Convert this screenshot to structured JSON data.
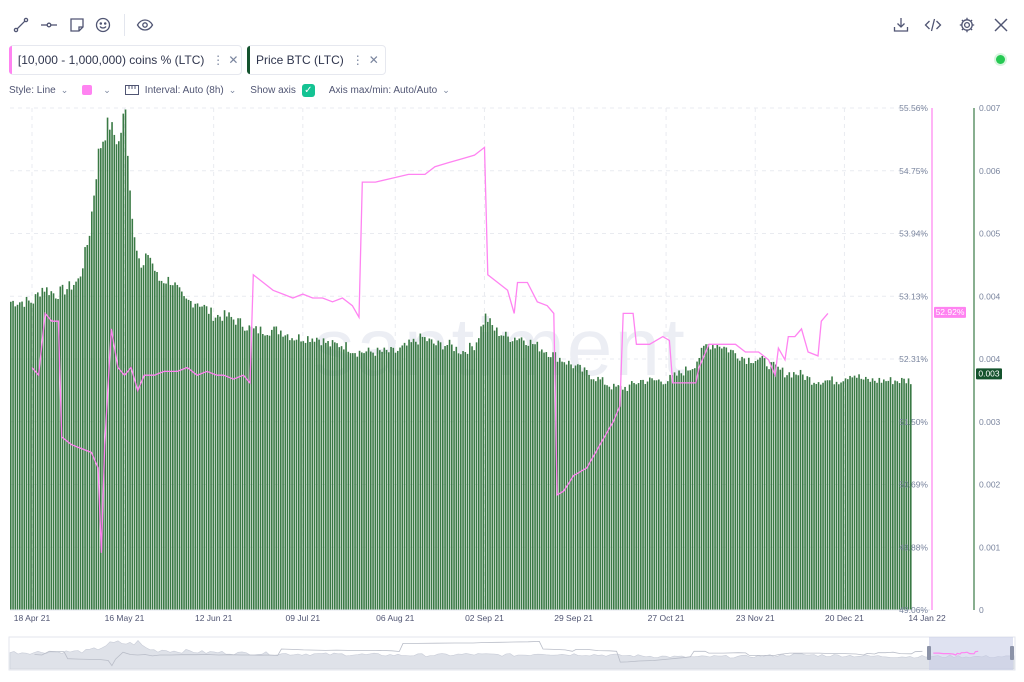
{
  "toolbar": {
    "left_icons": [
      "draw-line-icon",
      "horizontal-ray-icon",
      "note-icon",
      "emoji-icon",
      "eye-icon"
    ],
    "right_icons": [
      "download-icon",
      "embed-code-icon",
      "gear-icon",
      "close-icon"
    ]
  },
  "metrics": [
    {
      "label": "[10,000 - 1,000,000) coins % (LTC)",
      "color": "#ff83f1"
    },
    {
      "label": "Price BTC (LTC)",
      "color": "#14532d"
    }
  ],
  "settings": {
    "style": "Style: Line",
    "interval": "Interval: Auto (8h)",
    "show_axis": "Show axis",
    "axis_minmax": "Axis max/min: Auto/Auto"
  },
  "chart_data": {
    "type": "bar",
    "watermark": "santiment",
    "x_ticks": [
      "18 Apr 21",
      "16 May 21",
      "12 Jun 21",
      "09 Jul 21",
      "06 Aug 21",
      "02 Sep 21",
      "29 Sep 21",
      "27 Oct 21",
      "23 Nov 21",
      "20 Dec 21",
      "14 Jan 22"
    ],
    "left_axis": {
      "ticks": [
        "55.56%",
        "54.75%",
        "53.94%",
        "53.13%",
        "52.31%",
        "51.50%",
        "50.69%",
        "49.88%",
        "49.06%"
      ],
      "ylim": [
        49.06,
        55.56
      ],
      "current_value_label": "52.92%",
      "current_value": 52.92,
      "color": "#ff83f1"
    },
    "right_axis": {
      "ticks": [
        "0.007",
        "0.006",
        "0.005",
        "0.004",
        "0.004",
        "0.003",
        "0.002",
        "0.001",
        "0"
      ],
      "ylim": [
        0,
        0.007
      ],
      "current_value_label": "0.003",
      "current_value": 0.0033,
      "color": "#14532d"
    },
    "series": [
      {
        "name": "[10,000 - 1,000,000) coins % (LTC)",
        "type": "line",
        "color": "#ff83f1",
        "points": [
          [
            "18 Apr 21",
            52.2
          ],
          [
            "20 Apr 21",
            52.1
          ],
          [
            "22 Apr 21",
            52.9
          ],
          [
            "24 Apr 21",
            52.8
          ],
          [
            "26 Apr 21",
            52.8
          ],
          [
            "27 Apr 21",
            51.3
          ],
          [
            "30 Apr 21",
            51.2
          ],
          [
            "03 May 21",
            51.15
          ],
          [
            "06 May 21",
            51.1
          ],
          [
            "08 May 21",
            50.9
          ],
          [
            "09 May 21",
            49.8
          ],
          [
            "10 May 21",
            51.2
          ],
          [
            "12 May 21",
            52.7
          ],
          [
            "14 May 21",
            52.2
          ],
          [
            "16 May 21",
            52.1
          ],
          [
            "18 May 21",
            52.2
          ],
          [
            "20 May 21",
            51.9
          ],
          [
            "22 May 21",
            52.1
          ],
          [
            "25 May 21",
            52.1
          ],
          [
            "28 May 21",
            52.15
          ],
          [
            "01 Jun 21",
            52.15
          ],
          [
            "04 Jun 21",
            52.2
          ],
          [
            "07 Jun 21",
            52.1
          ],
          [
            "10 Jun 21",
            52.15
          ],
          [
            "13 Jun 21",
            52.1
          ],
          [
            "15 Jun 21",
            52.1
          ],
          [
            "18 Jun 21",
            52.05
          ],
          [
            "21 Jun 21",
            52.1
          ],
          [
            "23 Jun 21",
            52.0
          ],
          [
            "24 Jun 21",
            53.4
          ],
          [
            "27 Jun 21",
            53.3
          ],
          [
            "30 Jun 21",
            53.2
          ],
          [
            "03 Jul 21",
            53.15
          ],
          [
            "06 Jul 21",
            53.1
          ],
          [
            "09 Jul 21",
            53.15
          ],
          [
            "12 Jul 21",
            53.1
          ],
          [
            "15 Jul 21",
            53.1
          ],
          [
            "18 Jul 21",
            53.05
          ],
          [
            "21 Jul 21",
            53.1
          ],
          [
            "24 Jul 21",
            53.0
          ],
          [
            "26 Jul 21",
            52.85
          ],
          [
            "27 Jul 21",
            54.6
          ],
          [
            "31 Jul 21",
            54.6
          ],
          [
            "05 Aug 21",
            54.65
          ],
          [
            "10 Aug 21",
            54.7
          ],
          [
            "15 Aug 21",
            54.7
          ],
          [
            "18 Aug 21",
            54.8
          ],
          [
            "22 Aug 21",
            54.85
          ],
          [
            "26 Aug 21",
            54.9
          ],
          [
            "30 Aug 21",
            54.95
          ],
          [
            "02 Sep 21",
            55.05
          ],
          [
            "03 Sep 21",
            53.4
          ],
          [
            "06 Sep 21",
            53.3
          ],
          [
            "09 Sep 21",
            53.2
          ],
          [
            "11 Sep 21",
            52.9
          ],
          [
            "12 Sep 21",
            53.3
          ],
          [
            "15 Sep 21",
            53.3
          ],
          [
            "18 Sep 21",
            53.05
          ],
          [
            "21 Sep 21",
            53.0
          ],
          [
            "23 Sep 21",
            52.9
          ],
          [
            "24 Sep 21",
            50.55
          ],
          [
            "26 Sep 21",
            50.6
          ],
          [
            "29 Sep 21",
            50.8
          ],
          [
            "03 Oct 21",
            50.9
          ],
          [
            "07 Oct 21",
            51.2
          ],
          [
            "11 Oct 21",
            51.5
          ],
          [
            "13 Oct 21",
            51.7
          ],
          [
            "14 Oct 21",
            52.9
          ],
          [
            "17 Oct 21",
            52.9
          ],
          [
            "18 Oct 21",
            52.5
          ],
          [
            "22 Oct 21",
            52.5
          ],
          [
            "26 Oct 21",
            52.6
          ],
          [
            "28 Oct 21",
            52.55
          ],
          [
            "29 Oct 21",
            52.0
          ],
          [
            "02 Nov 21",
            52.0
          ],
          [
            "05 Nov 21",
            52.0
          ],
          [
            "06 Nov 21",
            52.2
          ],
          [
            "09 Nov 21",
            52.5
          ],
          [
            "13 Nov 21",
            52.5
          ],
          [
            "17 Nov 21",
            52.5
          ],
          [
            "20 Nov 21",
            52.4
          ],
          [
            "24 Nov 21",
            52.4
          ],
          [
            "27 Nov 21",
            52.3
          ],
          [
            "29 Nov 21",
            52.1
          ],
          [
            "30 Nov 21",
            52.45
          ],
          [
            "02 Dec 21",
            52.3
          ],
          [
            "03 Dec 21",
            52.6
          ],
          [
            "05 Dec 21",
            52.6
          ],
          [
            "07 Dec 21",
            52.7
          ],
          [
            "09 Dec 21",
            52.4
          ],
          [
            "12 Dec 21",
            52.35
          ],
          [
            "13 Dec 21",
            52.8
          ],
          [
            "15 Dec 21",
            52.9
          ]
        ]
      },
      {
        "name": "Price BTC (LTC)",
        "type": "bar",
        "color": "#3a7a45",
        "points": [
          [
            "18 Apr 21",
            0.0043
          ],
          [
            "21 Apr 21",
            0.0045
          ],
          [
            "25 Apr 21",
            0.0044
          ],
          [
            "29 Apr 21",
            0.0045
          ],
          [
            "02 May 21",
            0.0046
          ],
          [
            "05 May 21",
            0.0052
          ],
          [
            "08 May 21",
            0.0064
          ],
          [
            "11 May 21",
            0.0068
          ],
          [
            "14 May 21",
            0.0065
          ],
          [
            "16 May 21",
            0.007
          ],
          [
            "18 May 21",
            0.0055
          ],
          [
            "21 May 21",
            0.0047
          ],
          [
            "23 May 21",
            0.005
          ],
          [
            "26 May 21",
            0.0046
          ],
          [
            "30 May 21",
            0.0046
          ],
          [
            "03 Jun 21",
            0.0043
          ],
          [
            "07 Jun 21",
            0.0043
          ],
          [
            "12 Jun 21",
            0.0041
          ],
          [
            "16 Jun 21",
            0.0041
          ],
          [
            "20 Jun 21",
            0.004
          ],
          [
            "24 Jun 21",
            0.0039
          ],
          [
            "28 Jun 21",
            0.0039
          ],
          [
            "02 Jul 21",
            0.0039
          ],
          [
            "06 Jul 21",
            0.0038
          ],
          [
            "09 Jul 21",
            0.0038
          ],
          [
            "13 Jul 21",
            0.0038
          ],
          [
            "17 Jul 21",
            0.0037
          ],
          [
            "21 Jul 21",
            0.0037
          ],
          [
            "25 Jul 21",
            0.0036
          ],
          [
            "29 Jul 21",
            0.0036
          ],
          [
            "02 Aug 21",
            0.0036
          ],
          [
            "06 Aug 21",
            0.0036
          ],
          [
            "10 Aug 21",
            0.0037
          ],
          [
            "14 Aug 21",
            0.0038
          ],
          [
            "18 Aug 21",
            0.0037
          ],
          [
            "22 Aug 21",
            0.0037
          ],
          [
            "26 Aug 21",
            0.0036
          ],
          [
            "30 Aug 21",
            0.0037
          ],
          [
            "02 Sep 21",
            0.0041
          ],
          [
            "05 Sep 21",
            0.0039
          ],
          [
            "09 Sep 21",
            0.0038
          ],
          [
            "13 Sep 21",
            0.0038
          ],
          [
            "17 Sep 21",
            0.0037
          ],
          [
            "21 Sep 21",
            0.0036
          ],
          [
            "25 Sep 21",
            0.0035
          ],
          [
            "29 Sep 21",
            0.0034
          ],
          [
            "03 Oct 21",
            0.0033
          ],
          [
            "07 Oct 21",
            0.0032
          ],
          [
            "11 Oct 21",
            0.0031
          ],
          [
            "15 Oct 21",
            0.0031
          ],
          [
            "19 Oct 21",
            0.0032
          ],
          [
            "23 Oct 21",
            0.0032
          ],
          [
            "27 Oct 21",
            0.0032
          ],
          [
            "31 Oct 21",
            0.0033
          ],
          [
            "04 Nov 21",
            0.0034
          ],
          [
            "08 Nov 21",
            0.0037
          ],
          [
            "12 Nov 21",
            0.0037
          ],
          [
            "16 Nov 21",
            0.0036
          ],
          [
            "20 Nov 21",
            0.0035
          ],
          [
            "24 Nov 21",
            0.0035
          ],
          [
            "28 Nov 21",
            0.0034
          ],
          [
            "02 Dec 21",
            0.0033
          ],
          [
            "06 Dec 21",
            0.0033
          ],
          [
            "10 Dec 21",
            0.0032
          ],
          [
            "14 Dec 21",
            0.0032
          ],
          [
            "18 Dec 21",
            0.0032
          ],
          [
            "22 Dec 21",
            0.0033
          ],
          [
            "26 Dec 21",
            0.0032
          ],
          [
            "30 Dec 21",
            0.0032
          ],
          [
            "03 Jan 22",
            0.0032
          ],
          [
            "07 Jan 22",
            0.0032
          ],
          [
            "10 Jan 22",
            0.0032
          ],
          [
            "13 Jan 22",
            0.0034
          ]
        ]
      }
    ]
  }
}
